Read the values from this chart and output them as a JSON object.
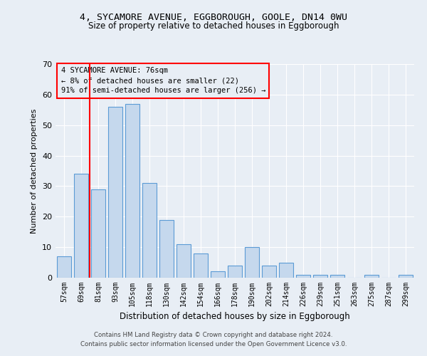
{
  "title1": "4, SYCAMORE AVENUE, EGGBOROUGH, GOOLE, DN14 0WU",
  "title2": "Size of property relative to detached houses in Eggborough",
  "xlabel": "Distribution of detached houses by size in Eggborough",
  "ylabel": "Number of detached properties",
  "categories": [
    "57sqm",
    "69sqm",
    "81sqm",
    "93sqm",
    "105sqm",
    "118sqm",
    "130sqm",
    "142sqm",
    "154sqm",
    "166sqm",
    "178sqm",
    "190sqm",
    "202sqm",
    "214sqm",
    "226sqm",
    "239sqm",
    "251sqm",
    "263sqm",
    "275sqm",
    "287sqm",
    "299sqm"
  ],
  "values": [
    7,
    34,
    29,
    56,
    57,
    31,
    19,
    11,
    8,
    2,
    4,
    10,
    4,
    5,
    1,
    1,
    1,
    0,
    1,
    0,
    1
  ],
  "bar_color": "#c5d8ed",
  "bar_edge_color": "#5b9bd5",
  "background_color": "#e8eef5",
  "grid_color": "#ffffff",
  "redline_x": 1.5,
  "annotation_title": "4 SYCAMORE AVENUE: 76sqm",
  "annotation_line1": "← 8% of detached houses are smaller (22)",
  "annotation_line2": "91% of semi-detached houses are larger (256) →",
  "footer1": "Contains HM Land Registry data © Crown copyright and database right 2024.",
  "footer2": "Contains public sector information licensed under the Open Government Licence v3.0.",
  "ylim": [
    0,
    70
  ],
  "yticks": [
    0,
    10,
    20,
    30,
    40,
    50,
    60,
    70
  ]
}
